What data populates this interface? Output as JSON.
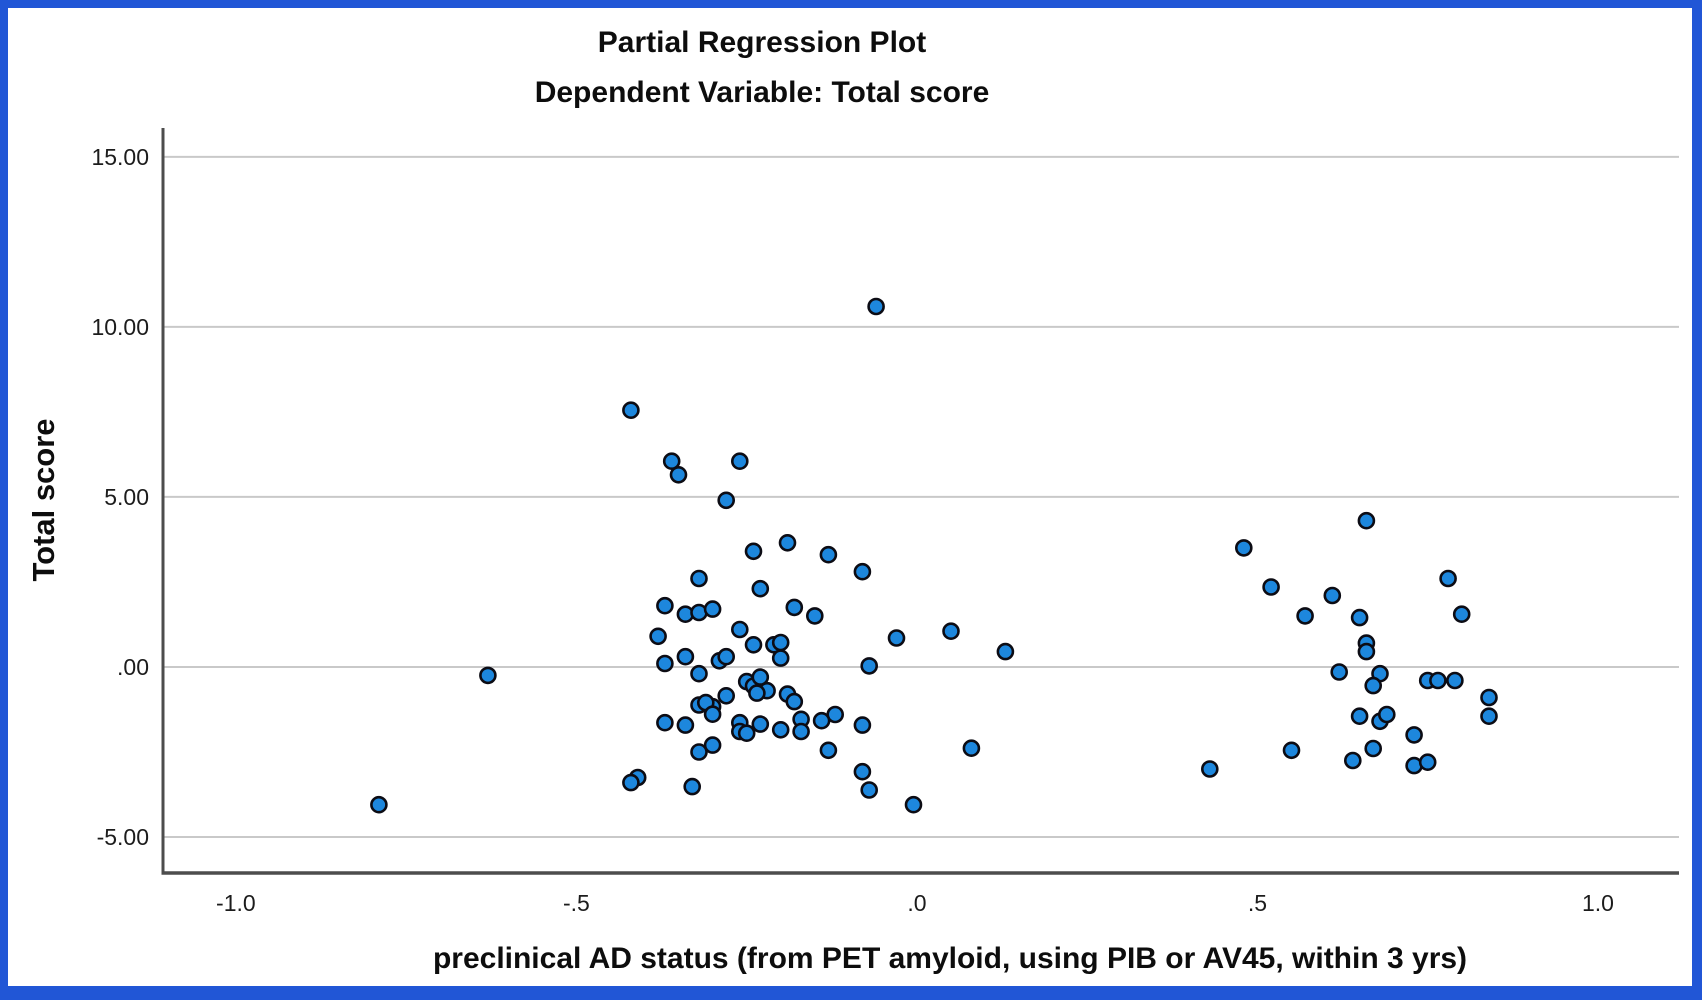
{
  "window": {
    "border_color": "#2156d6",
    "background": "#ffffff"
  },
  "chart_data": {
    "type": "scatter",
    "title": "Partial Regression Plot",
    "subtitle": "Dependent Variable: Total score",
    "xlabel": "preclinical AD status (from PET amyloid, using PIB or AV45, within 3 yrs)",
    "ylabel": "Total score",
    "xlim": [
      -1.107,
      1.119
    ],
    "ylim": [
      -6.06,
      15.85
    ],
    "grid": "horizontal-only",
    "legend": "none",
    "x_ticks": [
      {
        "value": -1.0,
        "label": "-1.0"
      },
      {
        "value": -0.5,
        "label": "-.5"
      },
      {
        "value": 0.0,
        "label": ".0"
      },
      {
        "value": 0.5,
        "label": ".5"
      },
      {
        "value": 1.0,
        "label": "1.0"
      }
    ],
    "y_ticks": [
      {
        "value": 15,
        "label": "15.00"
      },
      {
        "value": 10,
        "label": "10.00"
      },
      {
        "value": 5,
        "label": "5.00"
      },
      {
        "value": 0,
        "label": ".00"
      },
      {
        "value": -5,
        "label": "-5.00"
      }
    ],
    "colors": {
      "point_fill": "#1d87dd",
      "point_stroke": "#0c0c14",
      "gridline": "#c9c9c9",
      "axis_line": "#4d4d4d",
      "tick_text": "#1c1c1c"
    },
    "points": [
      [
        -0.06,
        10.6
      ],
      [
        -0.42,
        7.55
      ],
      [
        -0.36,
        6.05
      ],
      [
        -0.35,
        5.65
      ],
      [
        -0.26,
        6.05
      ],
      [
        -0.28,
        4.9
      ],
      [
        -0.24,
        3.4
      ],
      [
        -0.19,
        3.65
      ],
      [
        -0.13,
        3.3
      ],
      [
        -0.32,
        2.6
      ],
      [
        -0.23,
        2.3
      ],
      [
        -0.08,
        2.8
      ],
      [
        -0.37,
        1.8
      ],
      [
        -0.34,
        1.55
      ],
      [
        -0.32,
        1.6
      ],
      [
        -0.3,
        1.7
      ],
      [
        -0.18,
        1.75
      ],
      [
        -0.15,
        1.5
      ],
      [
        -0.38,
        0.9
      ],
      [
        -0.26,
        1.1
      ],
      [
        -0.24,
        0.65
      ],
      [
        -0.21,
        0.65
      ],
      [
        -0.2,
        0.72
      ],
      [
        -0.03,
        0.85
      ],
      [
        0.05,
        1.05
      ],
      [
        0.13,
        0.45
      ],
      [
        -0.34,
        0.3
      ],
      [
        -0.37,
        0.1
      ],
      [
        -0.29,
        0.18
      ],
      [
        -0.28,
        0.3
      ],
      [
        -0.07,
        0.03
      ],
      [
        -0.63,
        -0.25
      ],
      [
        -0.32,
        -0.2
      ],
      [
        -0.2,
        0.26
      ],
      [
        -0.25,
        -0.43
      ],
      [
        -0.24,
        -0.56
      ],
      [
        -0.23,
        -0.3
      ],
      [
        -0.22,
        -0.7
      ],
      [
        -0.235,
        -0.77
      ],
      [
        -0.28,
        -0.85
      ],
      [
        -0.3,
        -1.17
      ],
      [
        -0.32,
        -1.12
      ],
      [
        -0.31,
        -1.05
      ],
      [
        -0.3,
        -1.39
      ],
      [
        -0.19,
        -0.8
      ],
      [
        -0.18,
        -1.02
      ],
      [
        -0.12,
        -1.4
      ],
      [
        -0.37,
        -1.64
      ],
      [
        -0.34,
        -1.71
      ],
      [
        -0.26,
        -1.64
      ],
      [
        -0.26,
        -1.9
      ],
      [
        -0.25,
        -1.95
      ],
      [
        -0.23,
        -1.68
      ],
      [
        -0.2,
        -1.85
      ],
      [
        -0.17,
        -1.54
      ],
      [
        -0.17,
        -1.9
      ],
      [
        -0.14,
        -1.58
      ],
      [
        -0.08,
        -1.71
      ],
      [
        -0.3,
        -2.3
      ],
      [
        -0.32,
        -2.5
      ],
      [
        -0.13,
        -2.45
      ],
      [
        0.08,
        -2.39
      ],
      [
        -0.41,
        -3.25
      ],
      [
        -0.42,
        -3.4
      ],
      [
        -0.33,
        -3.52
      ],
      [
        -0.08,
        -3.08
      ],
      [
        -0.07,
        -3.62
      ],
      [
        -0.005,
        -4.05
      ],
      [
        -0.79,
        -4.05
      ],
      [
        0.66,
        4.3
      ],
      [
        0.48,
        3.5
      ],
      [
        0.52,
        2.35
      ],
      [
        0.61,
        2.1
      ],
      [
        0.57,
        1.5
      ],
      [
        0.65,
        1.45
      ],
      [
        0.78,
        2.6
      ],
      [
        0.8,
        1.55
      ],
      [
        0.66,
        0.7
      ],
      [
        0.66,
        0.45
      ],
      [
        0.62,
        -0.15
      ],
      [
        0.68,
        -0.2
      ],
      [
        0.67,
        -0.55
      ],
      [
        0.75,
        -0.4
      ],
      [
        0.765,
        -0.4
      ],
      [
        0.79,
        -0.4
      ],
      [
        0.84,
        -0.9
      ],
      [
        0.84,
        -1.45
      ],
      [
        0.65,
        -1.45
      ],
      [
        0.68,
        -1.6
      ],
      [
        0.69,
        -1.4
      ],
      [
        0.73,
        -2.0
      ],
      [
        0.55,
        -2.45
      ],
      [
        0.64,
        -2.75
      ],
      [
        0.67,
        -2.4
      ],
      [
        0.43,
        -3.0
      ],
      [
        0.73,
        -2.9
      ],
      [
        0.75,
        -2.8
      ]
    ]
  }
}
